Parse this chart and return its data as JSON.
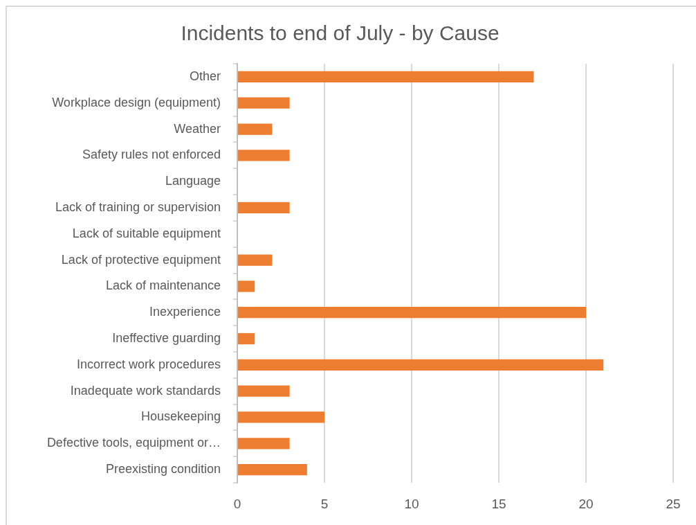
{
  "chart_data": {
    "type": "bar",
    "orientation": "horizontal",
    "title": "Incidents to end of July - by Cause",
    "categories": [
      "Other",
      "Workplace design (equipment)",
      "Weather",
      "Safety rules not enforced",
      "Language",
      "Lack of training or supervision",
      "Lack of suitable equipment",
      "Lack of protective equipment",
      "Lack of maintenance",
      "Inexperience",
      "Ineffective guarding",
      "Incorrect work procedures",
      "Inadequate work standards",
      "Housekeeping",
      "Defective tools, equipment or…",
      "Preexisting condition"
    ],
    "values": [
      17,
      3,
      2,
      3,
      0,
      3,
      0,
      2,
      1,
      20,
      1,
      21,
      3,
      5,
      3,
      4
    ],
    "color": "#ed7d31",
    "xlim": [
      0,
      25
    ],
    "xticks": [
      0,
      5,
      10,
      15,
      20,
      25
    ],
    "grid": "x"
  }
}
